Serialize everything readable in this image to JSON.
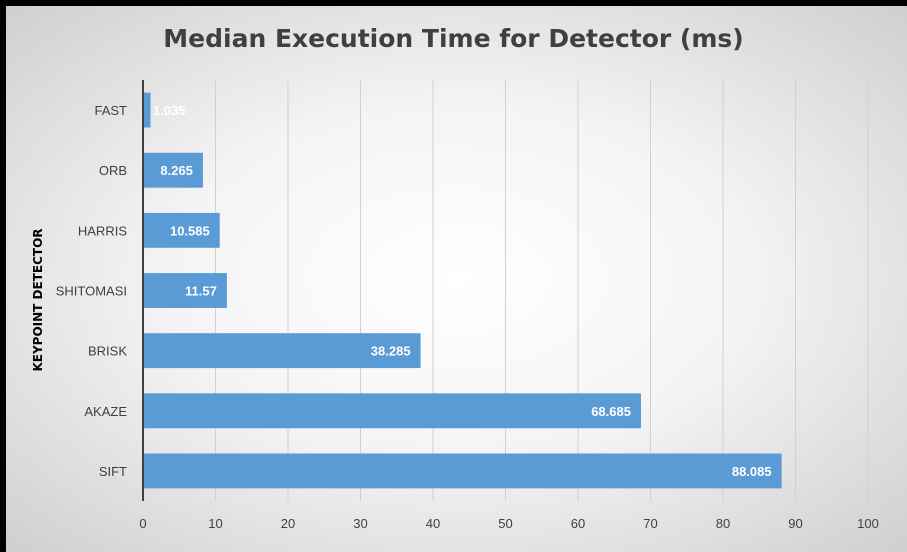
{
  "chart_data": {
    "type": "bar",
    "orientation": "horizontal",
    "title": "Median Execution Time for Detector (ms)",
    "xlabel": "",
    "ylabel": "KEYPOINT DETECTOR",
    "categories": [
      "FAST",
      "ORB",
      "HARRIS",
      "SHITOMASI",
      "BRISK",
      "AKAZE",
      "SIFT"
    ],
    "values": [
      1.035,
      8.265,
      10.585,
      11.57,
      38.285,
      68.685,
      88.085
    ],
    "data_labels": [
      "1.035",
      "8.265",
      "10.585",
      "11.57",
      "38.285",
      "68.685",
      "88.085"
    ],
    "xlim": [
      0,
      100
    ],
    "x_ticks": [
      0,
      10,
      20,
      30,
      40,
      50,
      60,
      70,
      80,
      90,
      100
    ],
    "grid": "vertical",
    "legend": "none",
    "bar_color": "#5b9bd5"
  }
}
